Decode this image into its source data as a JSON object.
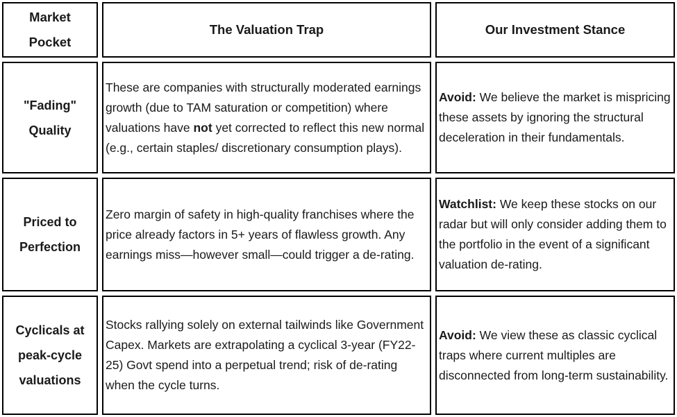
{
  "table": {
    "headers": [
      {
        "label": "Market\nPocket"
      },
      {
        "label": "The Valuation Trap"
      },
      {
        "label": "Our Investment Stance"
      }
    ],
    "rows": [
      {
        "pocket": "\"Fading\"\nQuality",
        "trap": [
          {
            "text": "These are companies with structurally moderated earnings growth (due to TAM saturation or competition) where valuations have ",
            "bold": false
          },
          {
            "text": "not",
            "bold": true
          },
          {
            "text": " yet corrected to reflect this new normal (e.g., certain staples/ discretionary consumption plays).",
            "bold": false
          }
        ],
        "stance": [
          {
            "text": "Avoid:",
            "bold": true
          },
          {
            "text": " We believe the market is mispricing these assets by ignoring the structural deceleration in their fundamentals.",
            "bold": false
          }
        ]
      },
      {
        "pocket": "Priced to\nPerfection",
        "trap": [
          {
            "text": "Zero margin of safety in high-quality franchises where the price already factors in 5+ years of flawless growth. Any earnings miss—however small—could trigger a de-rating.",
            "bold": false
          }
        ],
        "stance": [
          {
            "text": "Watchlist:",
            "bold": true
          },
          {
            "text": " We keep these stocks on our radar but will only consider adding them to the portfolio in the event of a significant valuation de-rating.",
            "bold": false
          }
        ]
      },
      {
        "pocket": "Cyclicals at\npeak-cycle\nvaluations",
        "trap": [
          {
            "text": "Stocks rallying solely on external tailwinds like Government Capex. Markets are extrapolating a cyclical 3-year (FY22-25) Govt spend into a perpetual trend; risk of de-rating when the cycle turns.",
            "bold": false
          }
        ],
        "stance": [
          {
            "text": "Avoid:",
            "bold": true
          },
          {
            "text": " We view these as classic cyclical traps where current multiples are disconnected from long-term sustainability.",
            "bold": false
          }
        ]
      }
    ],
    "border_color": "#000000",
    "text_color": "#1a1a1a",
    "background_color": "#ffffff"
  }
}
